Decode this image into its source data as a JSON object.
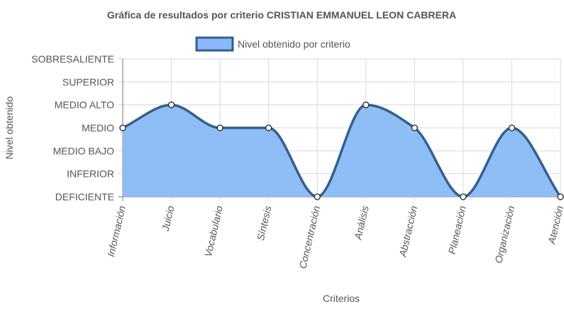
{
  "chart_data": {
    "type": "area",
    "title": "Gráfica de resultados por criterio CRISTIAN EMMANUEL LEON CABRERA",
    "xlabel": "Criterios",
    "ylabel": "Nivel obtenido",
    "y_levels": [
      "DEFICIENTE",
      "INFERIOR",
      "MEDIO BAJO",
      "MEDIO",
      "MEDIO ALTO",
      "SUPERIOR",
      "SOBRESALIENTE"
    ],
    "ylim": [
      0,
      6
    ],
    "categories": [
      "Información",
      "Juicio",
      "Vocabulario",
      "Síntesis",
      "Concentración",
      "Análisis",
      "Abstracción",
      "Planeación",
      "Organización",
      "Atención"
    ],
    "series": [
      {
        "name": "Nivel obtenido por criterio",
        "values": [
          3,
          4,
          3,
          3,
          0,
          4,
          3,
          0,
          3,
          0
        ]
      }
    ],
    "legend_position": "top",
    "grid": true,
    "colors": {
      "fill": "#89baf7",
      "line": "#335f90",
      "point_fill": "#ffffff",
      "point_stroke": "#222222",
      "grid": "#d9d9d9",
      "axis": "#777777",
      "text": "#555555"
    }
  }
}
